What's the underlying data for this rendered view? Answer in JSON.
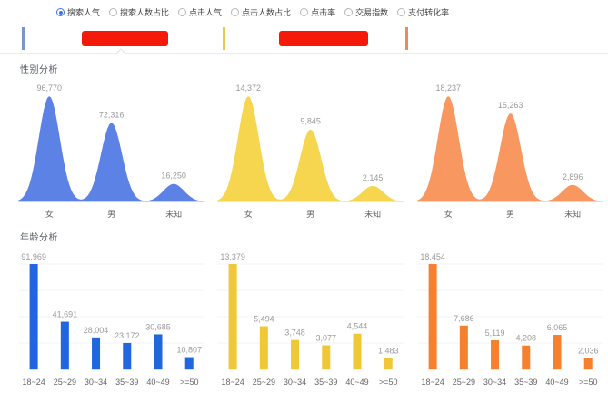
{
  "metrics_bar": {
    "options": [
      {
        "label": "搜索人气",
        "selected": true
      },
      {
        "label": "搜索人数占比",
        "selected": false
      },
      {
        "label": "点击人气",
        "selected": false
      },
      {
        "label": "点击人数占比",
        "selected": false
      },
      {
        "label": "点击率",
        "selected": false
      },
      {
        "label": "交易指数",
        "selected": false
      },
      {
        "label": "支付转化率",
        "selected": false
      }
    ],
    "selected_color": "#3D77E8"
  },
  "series_tabs": [
    {
      "name": "series-1",
      "indicator_color": "#7C95CC",
      "label_redacted": true,
      "redaction_color": "#F5190A",
      "active": true
    },
    {
      "name": "series-2",
      "indicator_color": "#E8C84E",
      "label_redacted": true,
      "redaction_color": "#F5190A",
      "active": false
    },
    {
      "name": "series-3",
      "indicator_color": "#F08A50",
      "label_redacted": true,
      "redaction_color": "#F5190A",
      "active": false
    }
  ],
  "sections": {
    "gender": {
      "title": "性别分析"
    },
    "age": {
      "title": "年龄分析"
    }
  },
  "chart_data": [
    {
      "type": "area",
      "group": "gender",
      "series": "series-1",
      "color": "#5B82E4",
      "categories": [
        "女",
        "男",
        "未知"
      ],
      "values": [
        96770,
        72316,
        16250
      ]
    },
    {
      "type": "area",
      "group": "gender",
      "series": "series-2",
      "color": "#F6D54F",
      "categories": [
        "女",
        "男",
        "未知"
      ],
      "values": [
        14372,
        9845,
        2145
      ]
    },
    {
      "type": "area",
      "group": "gender",
      "series": "series-3",
      "color": "#F8975F",
      "categories": [
        "女",
        "男",
        "未知"
      ],
      "values": [
        18237,
        15263,
        2896
      ]
    },
    {
      "type": "bar",
      "group": "age",
      "series": "series-1",
      "color": "#2066DF",
      "categories": [
        "18~24",
        "25~29",
        "30~34",
        "35~39",
        "40~49",
        ">=50"
      ],
      "values": [
        91969,
        41691,
        28004,
        23172,
        30685,
        10807
      ]
    },
    {
      "type": "bar",
      "group": "age",
      "series": "series-2",
      "color": "#EFC737",
      "categories": [
        "18~24",
        "25~29",
        "30~34",
        "35~39",
        "40~49",
        ">=50"
      ],
      "values": [
        13379,
        5494,
        3748,
        3077,
        4544,
        1483
      ]
    },
    {
      "type": "bar",
      "group": "age",
      "series": "series-3",
      "color": "#F5812F",
      "categories": [
        "18~24",
        "25~29",
        "30~34",
        "35~39",
        "40~49",
        ">=50"
      ],
      "values": [
        18454,
        7686,
        5119,
        4208,
        6065,
        2036
      ]
    }
  ]
}
